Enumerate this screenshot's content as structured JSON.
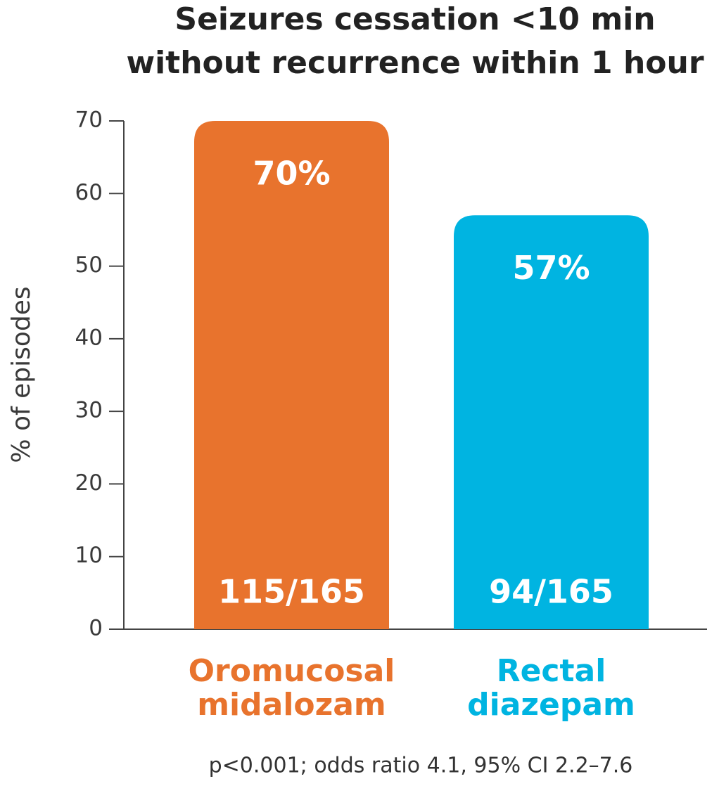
{
  "chart_data": {
    "type": "bar",
    "title": [
      "Seizures cessation <10 min",
      "without recurrence within  1 hour"
    ],
    "y_label": "% of episodes",
    "categories": [
      [
        "Oromucosal",
        "midalozam"
      ],
      [
        "Rectal",
        "diazepam"
      ]
    ],
    "values": [
      70,
      57
    ],
    "value_labels": [
      "70%",
      "57%"
    ],
    "count_labels": [
      "115/165",
      "94/165"
    ],
    "colors": [
      "#e8732d",
      "#00b4e1"
    ],
    "ylim": [
      0,
      70
    ],
    "yticks": [
      0,
      10,
      20,
      30,
      40,
      50,
      60,
      70
    ],
    "footnote": "p<0.001; odds ratio 4.1, 95% CI 2.2–7.6"
  }
}
